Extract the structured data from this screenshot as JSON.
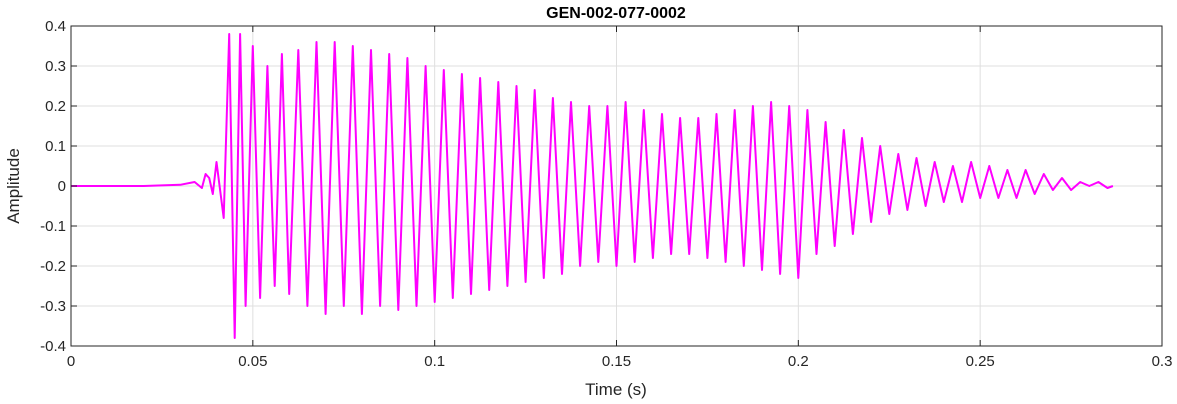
{
  "chart_data": {
    "type": "line",
    "title": "GEN-002-077-0002",
    "xlabel": "Time (s)",
    "ylabel": "Amplitude",
    "xlim": [
      0,
      0.3
    ],
    "ylim": [
      -0.4,
      0.4
    ],
    "x_ticks": [
      0,
      0.05,
      0.1,
      0.15,
      0.2,
      0.25,
      0.3
    ],
    "x_tick_labels": [
      "0",
      "0.05",
      "0.1",
      "0.15",
      "0.2",
      "0.25",
      "0.3"
    ],
    "y_ticks": [
      0.4,
      0.3,
      0.2,
      0.1,
      0,
      -0.1,
      -0.2,
      -0.3,
      -0.4
    ],
    "y_tick_labels": [
      "0.4",
      "0.3",
      "0.2",
      "0.1",
      "0",
      "-0.1",
      "-0.2",
      "-0.3",
      "-0.4"
    ],
    "grid": true,
    "line_color": "#ff00ff",
    "series": [
      {
        "x": [
          0,
          0.01,
          0.02,
          0.03,
          0.034,
          0.036,
          0.037,
          0.038,
          0.039,
          0.04,
          0.042,
          0.0435,
          0.045,
          0.0465,
          0.048,
          0.05,
          0.052,
          0.054,
          0.056,
          0.058,
          0.06,
          0.0625,
          0.065,
          0.0675,
          0.07,
          0.0725,
          0.075,
          0.0775,
          0.08,
          0.0825,
          0.085,
          0.0875,
          0.09,
          0.0925,
          0.095,
          0.0975,
          0.1,
          0.1025,
          0.105,
          0.1075,
          0.11,
          0.1125,
          0.115,
          0.1175,
          0.12,
          0.1225,
          0.125,
          0.1275,
          0.13,
          0.1325,
          0.135,
          0.1375,
          0.14,
          0.1425,
          0.145,
          0.1475,
          0.15,
          0.1525,
          0.155,
          0.1575,
          0.16,
          0.1625,
          0.165,
          0.1675,
          0.17,
          0.1725,
          0.175,
          0.1775,
          0.18,
          0.1825,
          0.185,
          0.1875,
          0.19,
          0.1925,
          0.195,
          0.1975,
          0.2,
          0.2025,
          0.205,
          0.2075,
          0.21,
          0.2125,
          0.215,
          0.2175,
          0.22,
          0.2225,
          0.225,
          0.2275,
          0.23,
          0.2325,
          0.235,
          0.2375,
          0.24,
          0.2425,
          0.245,
          0.2475,
          0.25,
          0.2525,
          0.255,
          0.2575,
          0.26,
          0.2625,
          0.265,
          0.2675,
          0.27,
          0.2725,
          0.275,
          0.2775,
          0.28,
          0.2825,
          0.285,
          0.2865
        ],
        "y": [
          0,
          0,
          0,
          0.003,
          0.01,
          -0.005,
          0.03,
          0.02,
          -0.02,
          0.06,
          -0.08,
          0.38,
          -0.38,
          0.38,
          -0.3,
          0.35,
          -0.28,
          0.3,
          -0.25,
          0.33,
          -0.27,
          0.34,
          -0.3,
          0.36,
          -0.32,
          0.36,
          -0.3,
          0.35,
          -0.32,
          0.34,
          -0.3,
          0.33,
          -0.31,
          0.32,
          -0.3,
          0.3,
          -0.29,
          0.29,
          -0.28,
          0.28,
          -0.27,
          0.27,
          -0.26,
          0.26,
          -0.25,
          0.25,
          -0.24,
          0.24,
          -0.23,
          0.22,
          -0.22,
          0.21,
          -0.2,
          0.2,
          -0.19,
          0.2,
          -0.2,
          0.21,
          -0.19,
          0.19,
          -0.18,
          0.18,
          -0.17,
          0.17,
          -0.17,
          0.17,
          -0.18,
          0.18,
          -0.19,
          0.19,
          -0.2,
          0.2,
          -0.21,
          0.21,
          -0.22,
          0.2,
          -0.23,
          0.19,
          -0.17,
          0.16,
          -0.15,
          0.14,
          -0.12,
          0.12,
          -0.09,
          0.1,
          -0.07,
          0.08,
          -0.06,
          0.07,
          -0.05,
          0.06,
          -0.04,
          0.05,
          -0.04,
          0.06,
          -0.03,
          0.05,
          -0.03,
          0.04,
          -0.03,
          0.04,
          -0.02,
          0.03,
          -0.01,
          0.02,
          -0.01,
          0.01,
          0,
          0.01,
          -0.005,
          0
        ]
      }
    ]
  }
}
